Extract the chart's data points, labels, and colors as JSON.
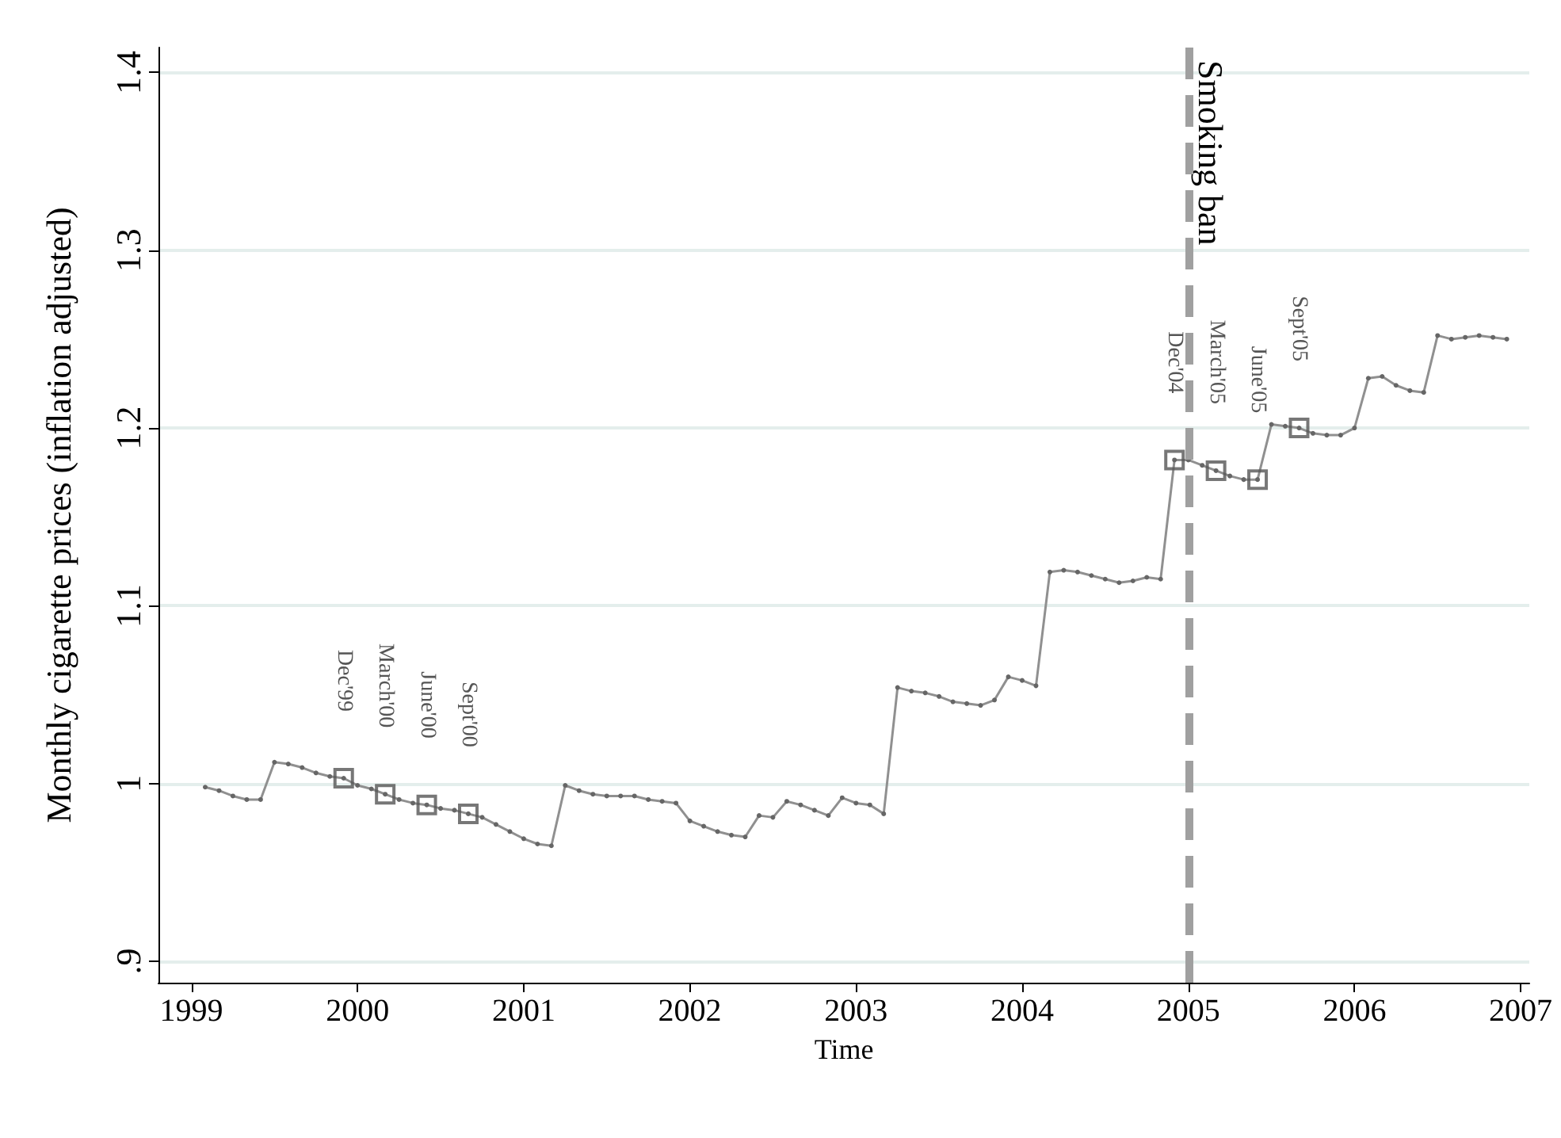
{
  "chart_data": {
    "type": "line",
    "xlabel": "Time",
    "ylabel": "Monthly cigarette prices (inflation adjusted)",
    "xlim": [
      "1998-10-20",
      "2007-01-20"
    ],
    "ylim": [
      0.888,
      1.414
    ],
    "xticks": [
      "1999",
      "2000",
      "2001",
      "2002",
      "2003",
      "2004",
      "2005",
      "2006",
      "2007"
    ],
    "yticks": [
      {
        "value": 0.9,
        "label": ".9"
      },
      1,
      1.1,
      1.2,
      1.3,
      1.4
    ],
    "grid": "y",
    "marker": "circle",
    "line_style": "solid",
    "series": [
      {
        "color": "#909090",
        "x": [
          "1999-02",
          "1999-03",
          "1999-04",
          "1999-05",
          "1999-06",
          "1999-07",
          "1999-08",
          "1999-09",
          "1999-10",
          "1999-11",
          "1999-12",
          "2000-01",
          "2000-02",
          "2000-03",
          "2000-04",
          "2000-05",
          "2000-06",
          "2000-07",
          "2000-08",
          "2000-09",
          "2000-10",
          "2000-11",
          "2000-12",
          "2001-01",
          "2001-02",
          "2001-03",
          "2001-04",
          "2001-05",
          "2001-06",
          "2001-07",
          "2001-08",
          "2001-09",
          "2001-10",
          "2001-11",
          "2001-12",
          "2002-01",
          "2002-02",
          "2002-03",
          "2002-04",
          "2002-05",
          "2002-06",
          "2002-07",
          "2002-08",
          "2002-09",
          "2002-10",
          "2002-11",
          "2002-12",
          "2003-01",
          "2003-02",
          "2003-03",
          "2003-04",
          "2003-05",
          "2003-06",
          "2003-07",
          "2003-08",
          "2003-09",
          "2003-10",
          "2003-11",
          "2003-12",
          "2004-01",
          "2004-02",
          "2004-03",
          "2004-04",
          "2004-05",
          "2004-06",
          "2004-07",
          "2004-08",
          "2004-09",
          "2004-10",
          "2004-11",
          "2004-12",
          "2005-01",
          "2005-02",
          "2005-03",
          "2005-04",
          "2005-05",
          "2005-06",
          "2005-07",
          "2005-08",
          "2005-09",
          "2005-10",
          "2005-11",
          "2005-12",
          "2006-01",
          "2006-02",
          "2006-03",
          "2006-04",
          "2006-05",
          "2006-06",
          "2006-07",
          "2006-08",
          "2006-09",
          "2006-10",
          "2006-11",
          "2006-12"
        ],
        "values": [
          0.998,
          0.996,
          0.993,
          0.991,
          0.991,
          1.012,
          1.011,
          1.009,
          1.006,
          1.004,
          1.003,
          0.999,
          0.997,
          0.994,
          0.991,
          0.989,
          0.988,
          0.986,
          0.985,
          0.983,
          0.981,
          0.977,
          0.973,
          0.969,
          0.966,
          0.965,
          0.999,
          0.996,
          0.994,
          0.993,
          0.993,
          0.993,
          0.991,
          0.99,
          0.989,
          0.979,
          0.976,
          0.973,
          0.971,
          0.97,
          0.982,
          0.981,
          0.99,
          0.988,
          0.985,
          0.982,
          0.992,
          0.989,
          0.988,
          0.983,
          1.054,
          1.052,
          1.051,
          1.049,
          1.046,
          1.045,
          1.044,
          1.047,
          1.06,
          1.058,
          1.055,
          1.119,
          1.12,
          1.119,
          1.117,
          1.115,
          1.113,
          1.114,
          1.116,
          1.115,
          1.182,
          1.182,
          1.179,
          1.176,
          1.173,
          1.171,
          1.171,
          1.202,
          1.201,
          1.2,
          1.197,
          1.196,
          1.196,
          1.2,
          1.228,
          1.229,
          1.224,
          1.221,
          1.22,
          1.252,
          1.25,
          1.251,
          1.252,
          1.251,
          1.25
        ]
      },
      {
        "type": "scatter",
        "marker": "square",
        "color": "#555555",
        "x": [
          "1999-12",
          "2000-03",
          "2000-06",
          "2000-09",
          "2004-12",
          "2005-03",
          "2005-06",
          "2005-09"
        ],
        "values": [
          1.003,
          0.994,
          0.988,
          0.983,
          1.182,
          1.176,
          1.171,
          1.2
        ]
      }
    ],
    "ref_lines": [
      {
        "axis": "x",
        "value": "2005-01",
        "label": "Smoking ban",
        "color": "#a0a0a0",
        "line_style": "dashed"
      }
    ],
    "annotations": [
      {
        "text": "Dec'99",
        "x": "1999-12",
        "y": 1.003
      },
      {
        "text": "March'00",
        "x": "2000-03",
        "y": 0.994
      },
      {
        "text": "June'00",
        "x": "2000-06",
        "y": 0.988
      },
      {
        "text": "Sept'00",
        "x": "2000-09",
        "y": 0.983
      },
      {
        "text": "Dec'04",
        "x": "2004-12",
        "y": 1.182
      },
      {
        "text": "March'05",
        "x": "2005-03",
        "y": 1.176
      },
      {
        "text": "June'05",
        "x": "2005-06",
        "y": 1.171
      },
      {
        "text": "Sept'05",
        "x": "2005-09",
        "y": 1.2
      }
    ]
  }
}
